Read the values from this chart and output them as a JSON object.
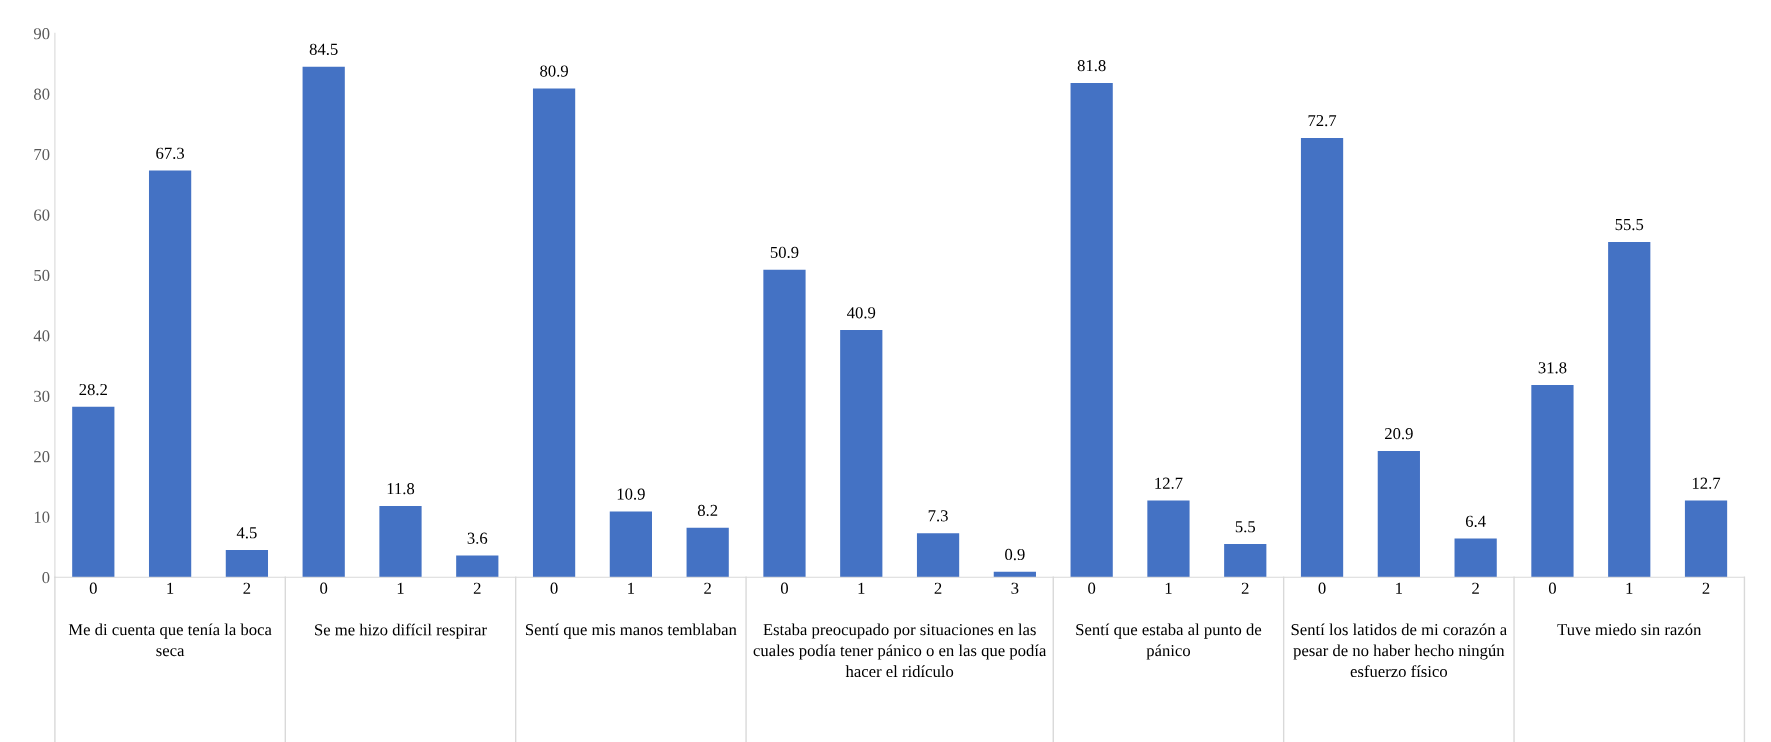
{
  "chart_data": {
    "type": "bar",
    "categories": [
      "0",
      "1",
      "2",
      "0",
      "1",
      "2",
      "0",
      "1",
      "2",
      "0",
      "1",
      "2",
      "3",
      "0",
      "1",
      "2",
      "0",
      "1",
      "2",
      "0",
      "1",
      "2"
    ],
    "values": [
      28.2,
      67.3,
      4.5,
      84.5,
      11.8,
      3.6,
      80.9,
      10.9,
      8.2,
      50.9,
      40.9,
      7.3,
      0.9,
      81.8,
      12.7,
      5.5,
      72.7,
      20.9,
      6.4,
      31.8,
      55.5,
      12.7
    ],
    "color": "#4472c4",
    "ylim": [
      0,
      90
    ],
    "yticks": [
      0,
      10,
      20,
      30,
      40,
      50,
      60,
      70,
      80,
      90
    ],
    "grid": false,
    "data_labels": true,
    "annotations": [
      "Me di cuenta que tenía la boca seca",
      "Se me hizo difícil respirar",
      "Sentí que mis manos temblaban",
      "Estaba preocupado por situaciones en las cuales podía tener pánico o en las que podía hacer el ridículo",
      "Sentí que estaba al punto de pánico",
      "Sentí los latidos de mi corazón a pesar de no haber hecho ningún esfuerzo físico",
      "Tuve miedo sin razón"
    ]
  }
}
